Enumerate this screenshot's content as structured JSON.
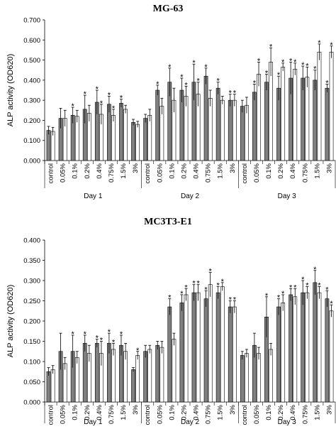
{
  "chart_data": [
    {
      "type": "bar",
      "title": "MG-63",
      "xlabel": "",
      "ylabel": "ALP activity (OD620)",
      "ylim": [
        0,
        0.7
      ],
      "yticks": [
        "0.000",
        "0.100",
        "0.200",
        "0.300",
        "0.400",
        "0.500",
        "0.600",
        "0.700"
      ],
      "grid": false,
      "categories": [
        "control",
        "0.05%",
        "0.1%",
        "0.2%",
        "0.4%",
        "0.75%",
        "1.5%",
        "3%"
      ],
      "groups": [
        "Day 1",
        "Day 2",
        "Day 3"
      ],
      "series": [
        {
          "values": [
            [
              0.15,
              0.21,
              0.225,
              0.255,
              0.29,
              0.28,
              0.285,
              0.19
            ],
            [
              0.21,
              0.35,
              0.39,
              0.35,
              0.39,
              0.42,
              0.36,
              0.3
            ],
            [
              0.27,
              0.34,
              0.39,
              0.36,
              0.41,
              0.41,
              0.4,
              0.36
            ]
          ],
          "errors": [
            [
              0.02,
              0.05,
              0.04,
              0.07,
              0.06,
              0.04,
              0.02,
              0.015
            ],
            [
              0.02,
              0.025,
              0.07,
              0.06,
              0.09,
              0.04,
              0.03,
              0.03
            ],
            [
              0.03,
              0.04,
              0.04,
              0.06,
              0.08,
              0.06,
              0.05,
              0.02
            ]
          ],
          "stars": [
            [
              false,
              false,
              true,
              true,
              true,
              true,
              true,
              false
            ],
            [
              false,
              true,
              true,
              true,
              true,
              true,
              true,
              true
            ],
            [
              false,
              true,
              true,
              true,
              true,
              true,
              true,
              true
            ]
          ]
        },
        {
          "values": [
            [
              0.145,
              0.21,
              0.22,
              0.235,
              0.23,
              0.225,
              0.255,
              0.18
            ],
            [
              0.225,
              0.27,
              0.3,
              0.32,
              0.33,
              0.31,
              0.3,
              0.3
            ],
            [
              0.275,
              0.43,
              0.49,
              0.465,
              0.455,
              0.415,
              0.54,
              0.54
            ]
          ],
          "errors": [
            [
              0.02,
              0.04,
              0.03,
              0.04,
              0.05,
              0.03,
              0.02,
              0.015
            ],
            [
              0.03,
              0.04,
              0.06,
              0.05,
              0.06,
              0.04,
              0.02,
              0.03
            ],
            [
              0.04,
              0.06,
              0.07,
              0.02,
              0.03,
              0.05,
              0.04,
              0.03
            ]
          ],
          "stars": [
            [
              false,
              false,
              false,
              false,
              true,
              true,
              false,
              false
            ],
            [
              false,
              false,
              false,
              true,
              true,
              false,
              false,
              true
            ],
            [
              false,
              true,
              true,
              true,
              true,
              true,
              true,
              true
            ]
          ]
        }
      ]
    },
    {
      "type": "bar",
      "title": "MC3T3-E1",
      "xlabel": "",
      "ylabel": "ALP activity (OD620)",
      "ylim": [
        0,
        0.4
      ],
      "yticks": [
        "0.000",
        "0.050",
        "0.100",
        "0.150",
        "0.200",
        "0.250",
        "0.300",
        "0.350",
        "0.400"
      ],
      "grid": false,
      "categories": [
        "control",
        "0.05%",
        "0.1%",
        "0.2%",
        "0.4%",
        "0.75%",
        "1.5%",
        "3%"
      ],
      "groups": [
        "Day 1",
        "Day 2",
        "Day 3"
      ],
      "series": [
        {
          "values": [
            [
              0.075,
              0.125,
              0.125,
              0.145,
              0.145,
              0.145,
              0.14,
              0.08
            ],
            [
              0.125,
              0.14,
              0.235,
              0.245,
              0.27,
              0.255,
              0.27,
              0.235
            ],
            [
              0.115,
              0.14,
              0.21,
              0.235,
              0.265,
              0.27,
              0.295,
              0.255
            ]
          ],
          "errors": [
            [
              0.01,
              0.045,
              0.04,
              0.02,
              0.01,
              0.025,
              0.025,
              0.005
            ],
            [
              0.015,
              0.01,
              0.02,
              0.02,
              0.02,
              0.02,
              0.015,
              0.015
            ],
            [
              0.01,
              0.03,
              0.05,
              0.02,
              0.015,
              0.03,
              0.03,
              0.02
            ]
          ],
          "stars": [
            [
              false,
              false,
              true,
              true,
              true,
              true,
              true,
              false
            ],
            [
              false,
              false,
              true,
              true,
              true,
              true,
              true,
              true
            ],
            [
              false,
              false,
              true,
              true,
              true,
              true,
              true,
              true
            ]
          ]
        },
        {
          "values": [
            [
              0.08,
              0.095,
              0.11,
              0.12,
              0.12,
              0.13,
              0.125,
              0.115
            ],
            [
              0.13,
              0.135,
              0.155,
              0.265,
              0.27,
              0.29,
              0.285,
              0.235
            ],
            [
              0.12,
              0.12,
              0.13,
              0.245,
              0.26,
              0.27,
              0.27,
              0.225
            ]
          ],
          "errors": [
            [
              0.01,
              0.015,
              0.015,
              0.02,
              0.03,
              0.015,
              0.02,
              0.01
            ],
            [
              0.01,
              0.015,
              0.015,
              0.015,
              0.02,
              0.03,
              0.01,
              0.015
            ],
            [
              0.01,
              0.015,
              0.015,
              0.02,
              0.02,
              0.015,
              0.015,
              0.015
            ]
          ],
          "stars": [
            [
              false,
              false,
              false,
              false,
              true,
              true,
              false,
              true
            ],
            [
              false,
              false,
              false,
              true,
              true,
              true,
              true,
              true
            ],
            [
              false,
              false,
              false,
              true,
              true,
              true,
              true,
              true
            ]
          ]
        }
      ]
    }
  ],
  "colors": {
    "series1": "#808080",
    "series2": "#ffffff",
    "stroke": "#000000"
  },
  "star_symbol": "*"
}
